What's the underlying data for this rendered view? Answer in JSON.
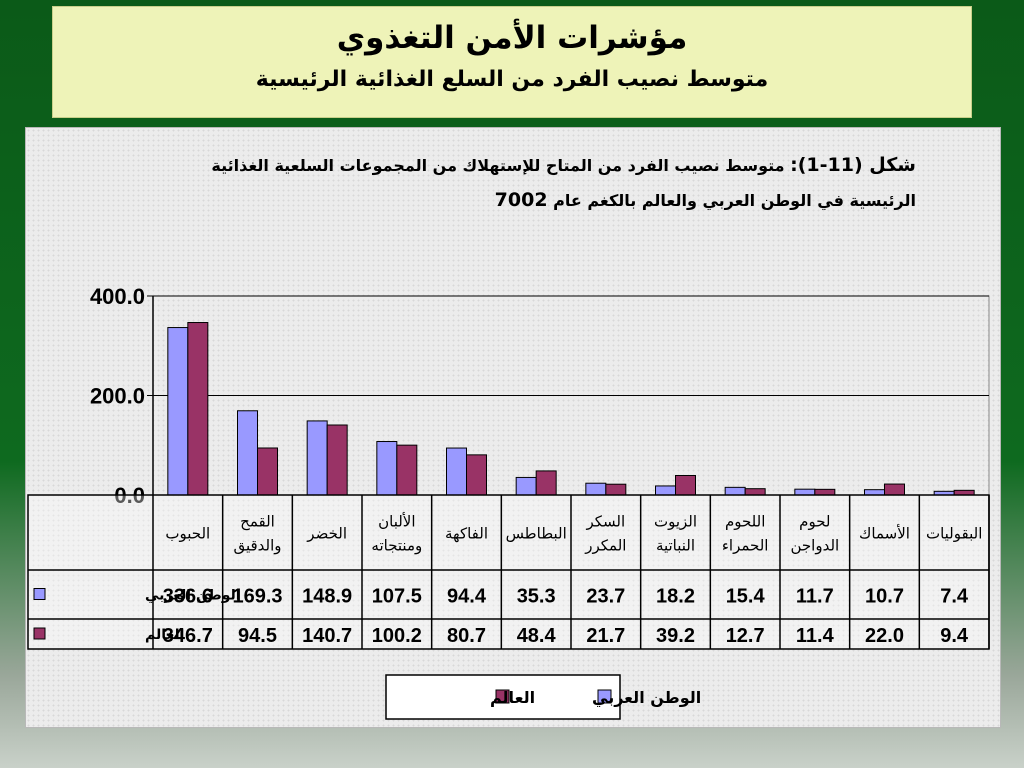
{
  "header": {
    "title": "مؤشرات الأمن التغذوي",
    "subtitle": "متوسط نصيب الفرد من السلع الغذائية الرئيسية"
  },
  "chart_title": {
    "lead": "شكل (11-1):",
    "line1": "متوسط نصيب الفرد من المتاح للإستهلاك من المجموعات السلعية الغذائية",
    "line2": "الرئيسية  في الوطن العربي والعالم بالكغم عام",
    "year": "7002"
  },
  "chart_data": {
    "type": "bar",
    "categories": [
      [
        "الحبوب"
      ],
      [
        "القمح",
        "والدقيق"
      ],
      [
        "الخضر"
      ],
      [
        "الألبان",
        "ومنتجاته"
      ],
      [
        "الفاكهة"
      ],
      [
        "البطاطس"
      ],
      [
        "السكر",
        "المكرر"
      ],
      [
        "الزيوت",
        "النباتية"
      ],
      [
        "اللحوم",
        "الحمراء"
      ],
      [
        "لحوم",
        "الدواجن"
      ],
      [
        "الأسماك"
      ],
      [
        "البقوليات"
      ]
    ],
    "series": [
      {
        "name": "الوطن العربي",
        "color": "#9999ff",
        "values": [
          336.6,
          169.3,
          148.9,
          107.5,
          94.4,
          35.3,
          23.7,
          18.2,
          15.4,
          11.7,
          10.7,
          7.4
        ],
        "labels": [
          "336.6",
          "169.3",
          "148.9",
          "107.5",
          "94.4",
          "35.3",
          "23.7",
          "18.2",
          "15.4",
          "11.7",
          "10.7",
          "7.4"
        ]
      },
      {
        "name": "العالم",
        "color": "#993366",
        "values": [
          346.7,
          94.5,
          140.7,
          100.2,
          80.7,
          48.4,
          21.7,
          39.2,
          12.7,
          11.4,
          22.0,
          9.4
        ],
        "labels": [
          "346.7",
          "94.5",
          "140.7",
          "100.2",
          "80.7",
          "48.4",
          "21.7",
          "39.2",
          "12.7",
          "11.4",
          "22.0",
          "9.4"
        ]
      }
    ],
    "y_ticks": [
      "0.0",
      "200.0",
      "400.0"
    ],
    "ylim": [
      0,
      400
    ],
    "legend_position": "bottom"
  }
}
